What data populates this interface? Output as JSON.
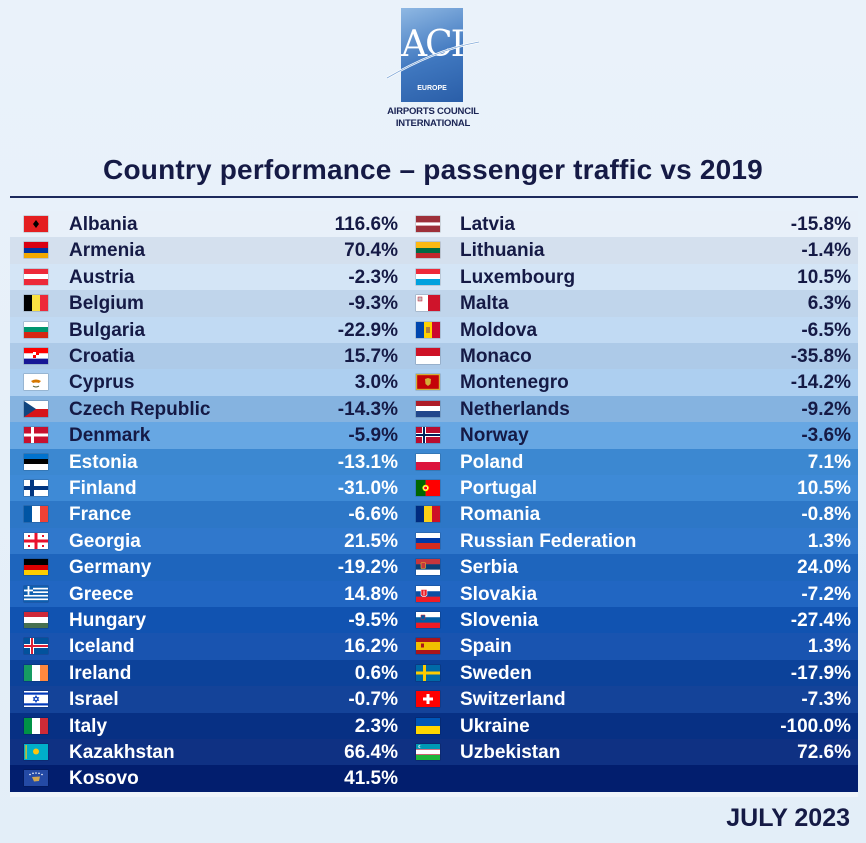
{
  "logo": {
    "letters": "ACI",
    "sub": "EUROPE",
    "org_line1": "AIRPORTS COUNCIL",
    "org_line2": "INTERNATIONAL"
  },
  "title": "Country performance – passenger traffic vs 2019",
  "footer": "JULY 2023",
  "colors": {
    "title": "#151a45",
    "row_light": "#e6f0f9",
    "row_dark_bottom": "#0d2c7a",
    "text_dark": "#151a45",
    "text_light": "#ffffff"
  },
  "chart_data": {
    "type": "table",
    "title": "Country performance – passenger traffic vs 2019",
    "columns": [
      {
        "rows": [
          {
            "country": "Albania",
            "value": "116.6%",
            "flag": "albania-flag"
          },
          {
            "country": "Armenia",
            "value": "70.4%",
            "flag": "armenia-flag"
          },
          {
            "country": "Austria",
            "value": "-2.3%",
            "flag": "austria-flag"
          },
          {
            "country": "Belgium",
            "value": "-9.3%",
            "flag": "belgium-flag"
          },
          {
            "country": "Bulgaria",
            "value": "-22.9%",
            "flag": "bulgaria-flag"
          },
          {
            "country": "Croatia",
            "value": "15.7%",
            "flag": "croatia-flag"
          },
          {
            "country": "Cyprus",
            "value": "3.0%",
            "flag": "cyprus-flag"
          },
          {
            "country": "Czech Republic",
            "value": "-14.3%",
            "flag": "czech-republic-flag"
          },
          {
            "country": "Denmark",
            "value": "-5.9%",
            "flag": "denmark-flag"
          },
          {
            "country": "Estonia",
            "value": "-13.1%",
            "flag": "estonia-flag"
          },
          {
            "country": "Finland",
            "value": "-31.0%",
            "flag": "finland-flag"
          },
          {
            "country": "France",
            "value": "-6.6%",
            "flag": "france-flag"
          },
          {
            "country": "Georgia",
            "value": "21.5%",
            "flag": "georgia-flag"
          },
          {
            "country": "Germany",
            "value": "-19.2%",
            "flag": "germany-flag"
          },
          {
            "country": "Greece",
            "value": "14.8%",
            "flag": "greece-flag"
          },
          {
            "country": "Hungary",
            "value": "-9.5%",
            "flag": "hungary-flag"
          },
          {
            "country": "Iceland",
            "value": "16.2%",
            "flag": "iceland-flag"
          },
          {
            "country": "Ireland",
            "value": "0.6%",
            "flag": "ireland-flag"
          },
          {
            "country": "Israel",
            "value": "-0.7%",
            "flag": "israel-flag"
          },
          {
            "country": "Italy",
            "value": "2.3%",
            "flag": "italy-flag"
          },
          {
            "country": "Kazakhstan",
            "value": "66.4%",
            "flag": "kazakhstan-flag"
          },
          {
            "country": "Kosovo",
            "value": "41.5%",
            "flag": "kosovo-flag"
          }
        ]
      },
      {
        "rows": [
          {
            "country": "Latvia",
            "value": "-15.8%",
            "flag": "latvia-flag"
          },
          {
            "country": "Lithuania",
            "value": "-1.4%",
            "flag": "lithuania-flag"
          },
          {
            "country": "Luxembourg",
            "value": "10.5%",
            "flag": "luxembourg-flag"
          },
          {
            "country": "Malta",
            "value": "6.3%",
            "flag": "malta-flag"
          },
          {
            "country": "Moldova",
            "value": "-6.5%",
            "flag": "moldova-flag"
          },
          {
            "country": "Monaco",
            "value": "-35.8%",
            "flag": "monaco-flag"
          },
          {
            "country": "Montenegro",
            "value": "-14.2%",
            "flag": "montenegro-flag"
          },
          {
            "country": "Netherlands",
            "value": "-9.2%",
            "flag": "netherlands-flag"
          },
          {
            "country": "Norway",
            "value": "-3.6%",
            "flag": "norway-flag"
          },
          {
            "country": "Poland",
            "value": "7.1%",
            "flag": "poland-flag"
          },
          {
            "country": "Portugal",
            "value": "10.5%",
            "flag": "portugal-flag"
          },
          {
            "country": "Romania",
            "value": "-0.8%",
            "flag": "romania-flag"
          },
          {
            "country": "Russian Federation",
            "value": "1.3%",
            "flag": "russia-flag"
          },
          {
            "country": "Serbia",
            "value": "24.0%",
            "flag": "serbia-flag"
          },
          {
            "country": "Slovakia",
            "value": "-7.2%",
            "flag": "slovakia-flag"
          },
          {
            "country": "Slovenia",
            "value": "-27.4%",
            "flag": "slovenia-flag"
          },
          {
            "country": "Spain",
            "value": "1.3%",
            "flag": "spain-flag"
          },
          {
            "country": "Sweden",
            "value": "-17.9%",
            "flag": "sweden-flag"
          },
          {
            "country": "Switzerland",
            "value": "-7.3%",
            "flag": "switzerland-flag"
          },
          {
            "country": "Ukraine",
            "value": "-100.0%",
            "flag": "ukraine-flag"
          },
          {
            "country": "Uzbekistan",
            "value": "72.6%",
            "flag": "uzbekistan-flag"
          }
        ]
      }
    ]
  }
}
